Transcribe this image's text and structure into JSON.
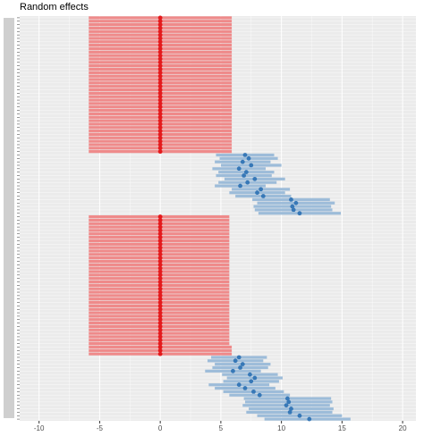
{
  "chart_data": {
    "type": "interval",
    "title": "Random effects",
    "xlim": [
      -11.6,
      21.1
    ],
    "xticks": [
      -10,
      -5,
      0,
      5,
      10,
      15,
      20
    ],
    "grid": true,
    "series": [
      {
        "color": "#e41a1c",
        "bar_color": "#ef8a8a",
        "categories": [
          null,
          null,
          null,
          null,
          null,
          null,
          null,
          null,
          null,
          null,
          null,
          null,
          null,
          null,
          null,
          null,
          null,
          null,
          null,
          null,
          null,
          null,
          null,
          null,
          null,
          null,
          null,
          null,
          null,
          null,
          null,
          null,
          null,
          null,
          null,
          null,
          null,
          null,
          null,
          null
        ],
        "values": [
          0,
          0,
          0,
          0,
          0,
          0,
          0,
          0,
          0,
          0,
          0,
          0,
          0,
          0,
          0,
          0,
          0,
          0,
          0,
          0,
          0,
          0,
          0,
          0,
          0,
          0,
          0,
          0,
          0,
          0,
          0,
          0,
          0,
          0,
          0,
          0,
          0,
          0,
          0,
          0
        ],
        "low": [
          -5.9,
          -5.9,
          -5.9,
          -5.9,
          -5.9,
          -5.9,
          -5.9,
          -5.9,
          -5.9,
          -5.9,
          -5.9,
          -5.9,
          -5.9,
          -5.9,
          -5.9,
          -5.9,
          -5.9,
          -5.9,
          -5.9,
          -5.9,
          -5.9,
          -5.9,
          -5.9,
          -5.9,
          -5.9,
          -5.9,
          -5.9,
          -5.9,
          -5.9,
          -5.9,
          -5.9,
          -5.9,
          -5.9,
          -5.9,
          -5.9,
          -5.9,
          -5.9,
          -5.9,
          -5.9,
          -5.9
        ],
        "high": [
          5.9,
          5.9,
          5.9,
          5.9,
          5.9,
          5.9,
          5.9,
          5.9,
          5.9,
          5.9,
          5.9,
          5.9,
          5.9,
          5.9,
          5.9,
          5.9,
          5.9,
          5.9,
          5.9,
          5.9,
          5.9,
          5.9,
          5.9,
          5.9,
          5.9,
          5.9,
          5.9,
          5.9,
          5.9,
          5.9,
          5.9,
          5.9,
          5.9,
          5.9,
          5.9,
          5.9,
          5.9,
          5.9,
          5.9,
          5.9
        ]
      },
      {
        "color": "#3778b7",
        "bar_color": "#9dbcd9",
        "categories": [
          null,
          null,
          null,
          null,
          null,
          null,
          null,
          null,
          null,
          null,
          null,
          null,
          null,
          null,
          null,
          null,
          null,
          null
        ],
        "values": [
          7.0,
          7.3,
          6.8,
          7.5,
          6.5,
          7.1,
          6.9,
          7.8,
          7.2,
          6.6,
          8.3,
          8.0,
          8.5,
          10.8,
          11.2,
          10.9,
          11.0,
          11.5
        ],
        "low": [
          4.6,
          4.9,
          4.5,
          5.0,
          4.3,
          4.8,
          4.6,
          5.3,
          4.8,
          4.5,
          5.9,
          5.7,
          6.2,
          7.6,
          8.0,
          7.7,
          7.8,
          8.1
        ],
        "high": [
          9.4,
          9.7,
          9.1,
          10.0,
          8.7,
          9.4,
          9.2,
          10.3,
          9.6,
          8.7,
          10.7,
          10.3,
          10.8,
          14.0,
          14.4,
          14.1,
          14.2,
          14.9
        ]
      },
      {
        "color": "#e41a1c",
        "bar_color": "#ef8a8a",
        "categories": [
          null,
          null,
          null,
          null,
          null,
          null,
          null,
          null,
          null,
          null,
          null,
          null,
          null,
          null,
          null,
          null,
          null,
          null,
          null,
          null,
          null,
          null,
          null,
          null,
          null,
          null,
          null,
          null,
          null,
          null,
          null,
          null,
          null,
          null,
          null,
          null,
          null,
          null,
          null,
          null,
          null
        ],
        "values": [
          0,
          0,
          0,
          0,
          0,
          0,
          0,
          0,
          0,
          0,
          0,
          0,
          0,
          0,
          0,
          0,
          0,
          0,
          0,
          0,
          0,
          0,
          0,
          0,
          0,
          0,
          0,
          0,
          0,
          0,
          0,
          0,
          0,
          0,
          0,
          0,
          0,
          0,
          0,
          0,
          0
        ],
        "low": [
          -5.9,
          -5.9,
          -5.9,
          -5.9,
          -5.9,
          -5.9,
          -5.9,
          -5.9,
          -5.9,
          -5.9,
          -5.9,
          -5.9,
          -5.9,
          -5.9,
          -5.9,
          -5.9,
          -5.9,
          -5.9,
          -5.9,
          -5.9,
          -5.9,
          -5.9,
          -5.9,
          -5.9,
          -5.9,
          -5.9,
          -5.9,
          -5.9,
          -5.9,
          -5.9,
          -5.9,
          -5.9,
          -5.9,
          -5.9,
          -5.9,
          -5.9,
          -5.9,
          -5.9,
          -5.9,
          -5.9,
          -5.9
        ],
        "high": [
          5.7,
          5.7,
          5.7,
          5.7,
          5.7,
          5.7,
          5.7,
          5.7,
          5.7,
          5.7,
          5.7,
          5.7,
          5.7,
          5.7,
          5.7,
          5.7,
          5.7,
          5.7,
          5.7,
          5.7,
          5.7,
          5.7,
          5.7,
          5.7,
          5.7,
          5.7,
          5.7,
          5.7,
          5.7,
          5.7,
          5.7,
          5.7,
          5.7,
          5.7,
          5.7,
          5.7,
          5.7,
          5.7,
          5.9,
          5.9,
          5.9
        ]
      },
      {
        "color": "#3778b7",
        "bar_color": "#9dbcd9",
        "categories": [
          null,
          null,
          null,
          null,
          null,
          null,
          null,
          null,
          null,
          null,
          null,
          null,
          null,
          null,
          null,
          null,
          null,
          null,
          null
        ],
        "values": [
          6.5,
          6.2,
          6.8,
          6.6,
          6.0,
          7.4,
          7.8,
          7.5,
          6.5,
          7.0,
          7.7,
          8.2,
          10.5,
          10.6,
          10.4,
          10.8,
          10.7,
          11.5,
          12.3
        ],
        "low": [
          4.2,
          3.9,
          4.5,
          4.3,
          3.7,
          5.1,
          5.5,
          5.2,
          4.0,
          4.5,
          5.2,
          5.7,
          6.9,
          7.0,
          6.8,
          7.3,
          7.1,
          8.0,
          8.6
        ],
        "high": [
          8.8,
          8.5,
          9.1,
          8.9,
          8.3,
          9.7,
          10.1,
          9.8,
          9.0,
          9.5,
          10.2,
          10.7,
          14.1,
          14.2,
          14.0,
          14.3,
          14.2,
          15.0,
          15.7
        ]
      }
    ]
  }
}
